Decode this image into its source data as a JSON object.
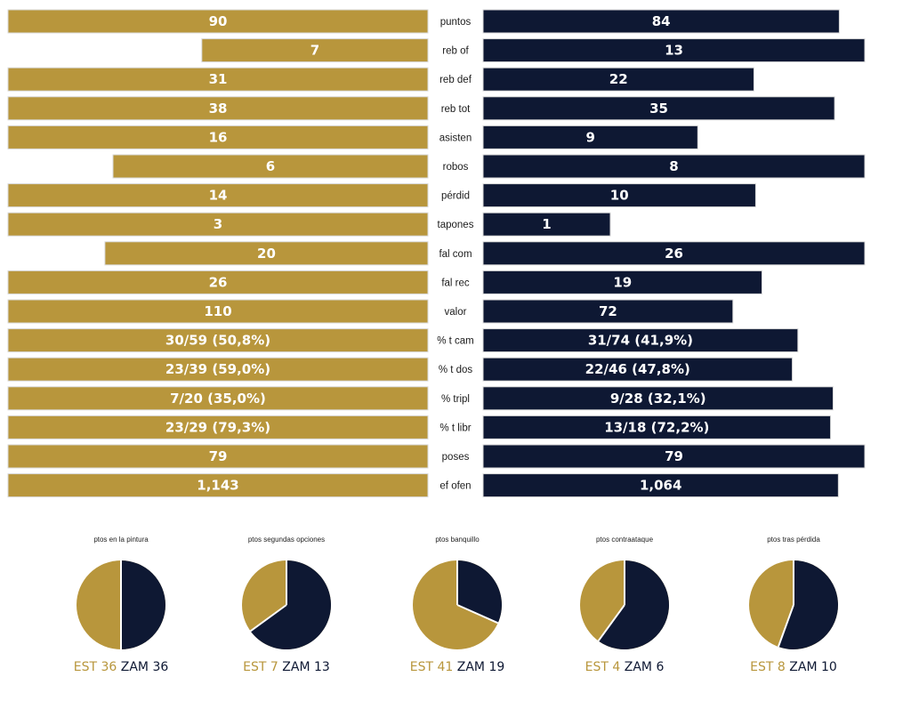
{
  "colors": {
    "est": "#b8963c",
    "zam": "#0e1833"
  },
  "chart_data": [
    {
      "type": "bar",
      "orientation": "horizontal-mirrored",
      "categories": [
        "puntos",
        "reb of",
        "reb def",
        "reb tot",
        "asisten",
        "robos",
        "pérdid",
        "tapones",
        "fal com",
        "fal rec",
        "valor",
        "% t cam",
        "% t dos",
        "% tripl",
        "% t libr",
        "poses",
        "ef ofen"
      ],
      "series": [
        {
          "name": "EST",
          "values": [
            90,
            7,
            31,
            38,
            16,
            6,
            14,
            3,
            20,
            26,
            110,
            50.8,
            59.0,
            35.0,
            79.3,
            79,
            1.143
          ],
          "labels": [
            "90",
            "7",
            "31",
            "38",
            "16",
            "6",
            "14",
            "3",
            "20",
            "26",
            "110",
            "30/59 (50,8%)",
            "23/39 (59,0%)",
            "7/20 (35,0%)",
            "23/29 (79,3%)",
            "79",
            "1,143"
          ]
        },
        {
          "name": "ZAM",
          "values": [
            84,
            13,
            22,
            35,
            9,
            8,
            10,
            1,
            26,
            19,
            72,
            41.9,
            47.8,
            32.1,
            72.2,
            79,
            1.064
          ],
          "labels": [
            "84",
            "13",
            "22",
            "35",
            "9",
            "8",
            "10",
            "1",
            "26",
            "19",
            "72",
            "31/74 (41,9%)",
            "22/46 (47,8%)",
            "9/28 (32,1%)",
            "13/18 (72,2%)",
            "79",
            "1,064"
          ]
        }
      ]
    },
    {
      "type": "pie",
      "title": "ptos en la pintura",
      "series": [
        {
          "name": "EST",
          "value": 36
        },
        {
          "name": "ZAM",
          "value": 36
        }
      ]
    },
    {
      "type": "pie",
      "title": "ptos segundas opciones",
      "series": [
        {
          "name": "EST",
          "value": 7
        },
        {
          "name": "ZAM",
          "value": 13
        }
      ]
    },
    {
      "type": "pie",
      "title": "ptos banquillo",
      "series": [
        {
          "name": "EST",
          "value": 41
        },
        {
          "name": "ZAM",
          "value": 19
        }
      ]
    },
    {
      "type": "pie",
      "title": "ptos contraataque",
      "series": [
        {
          "name": "EST",
          "value": 4
        },
        {
          "name": "ZAM",
          "value": 6
        }
      ]
    },
    {
      "type": "pie",
      "title": "ptos tras pérdida",
      "series": [
        {
          "name": "EST",
          "value": 8
        },
        {
          "name": "ZAM",
          "value": 10
        }
      ]
    }
  ]
}
